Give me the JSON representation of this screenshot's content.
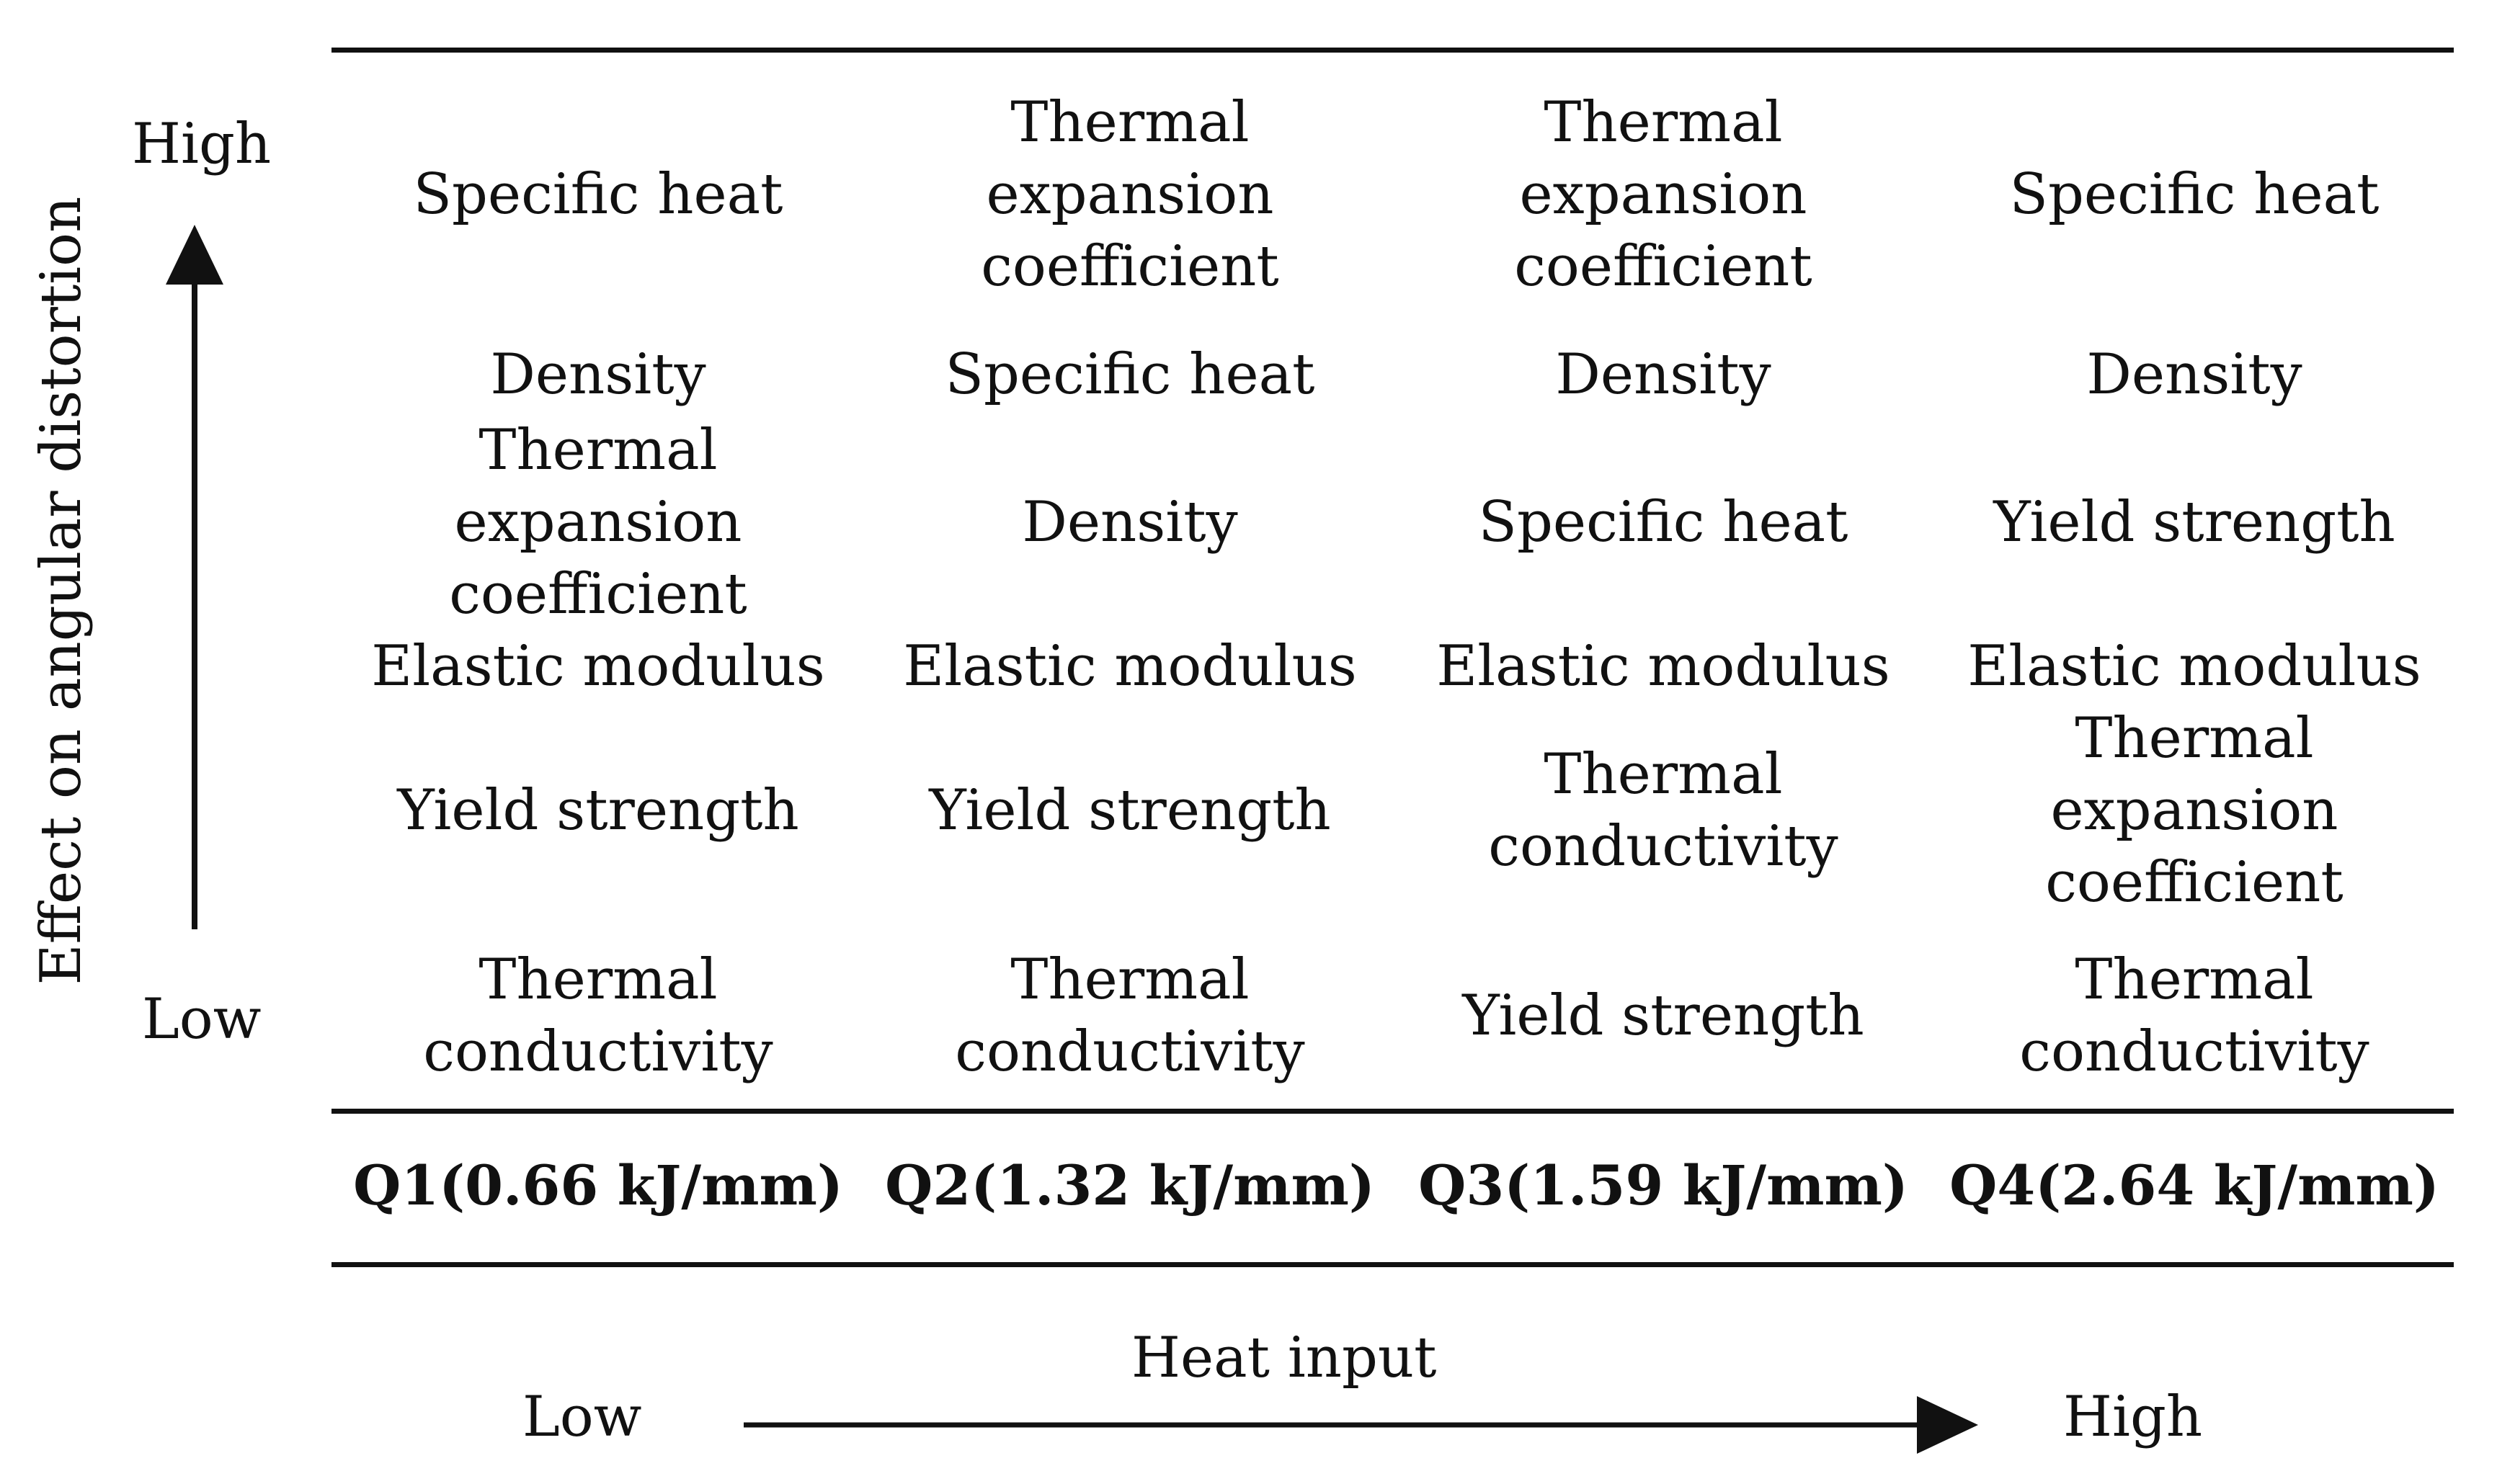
{
  "y_axis": {
    "title": "Effect on angular distortion",
    "high_label": "High",
    "low_label": "Low"
  },
  "x_axis": {
    "title": "Heat input",
    "low_label": "Low",
    "high_label": "High"
  },
  "columns": [
    {
      "label": "Q1(0.66 kJ/mm)",
      "items": [
        "Specific heat",
        "Density",
        "Thermal expansion coefficient",
        "Elastic modulus",
        "Yield strength",
        "Thermal conductivity"
      ]
    },
    {
      "label": "Q2(1.32 kJ/mm)",
      "items": [
        "Thermal expansion coefficient",
        "Specific heat",
        "Density",
        "Elastic modulus",
        "Yield strength",
        "Thermal conductivity"
      ]
    },
    {
      "label": "Q3(1.59 kJ/mm)",
      "items": [
        "Thermal expansion coefficient",
        "Density",
        "Specific heat",
        "Elastic modulus",
        "Thermal conductivity",
        "Yield strength"
      ]
    },
    {
      "label": "Q4(2.64 kJ/mm)",
      "items": [
        "Specific heat",
        "Density",
        "Yield strength",
        "Elastic modulus",
        "Thermal expansion coefficient",
        "Thermal conductivity"
      ]
    }
  ]
}
